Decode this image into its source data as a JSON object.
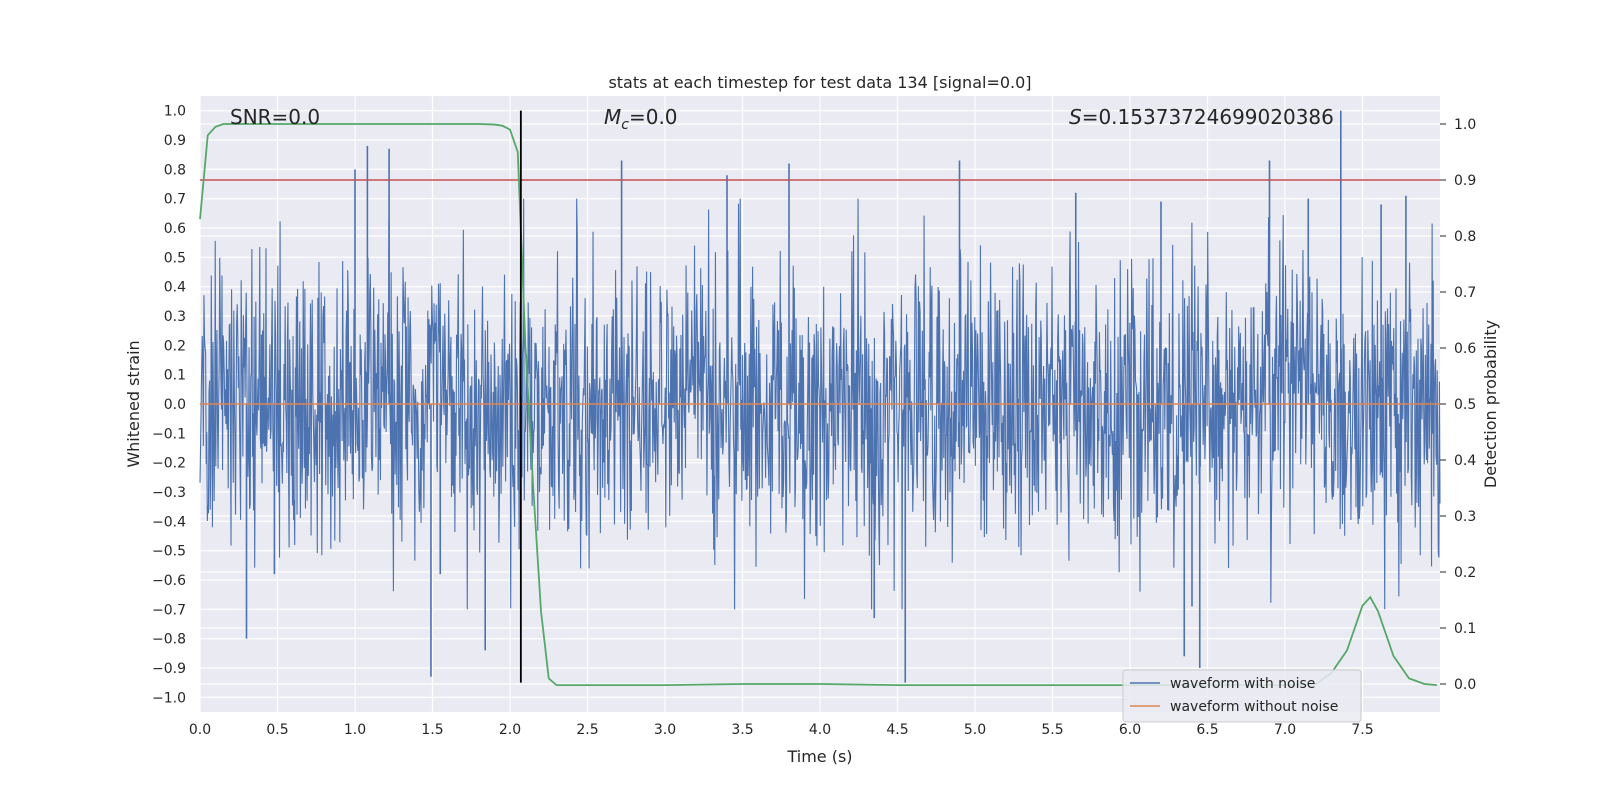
{
  "chart_data": {
    "type": "line",
    "title": "stats at each timestep for test data 134 [signal=0.0]",
    "xlabel": "Time (s)",
    "ylabel": "Whitened strain",
    "y2label": "Detection probability",
    "xlim": [
      0.0,
      8.0
    ],
    "ylim": [
      -1.05,
      1.05
    ],
    "y2lim": [
      -0.05,
      1.05
    ],
    "xticks": [
      0.0,
      0.5,
      1.0,
      1.5,
      2.0,
      2.5,
      3.0,
      3.5,
      4.0,
      4.5,
      5.0,
      5.5,
      6.0,
      6.5,
      7.0,
      7.5
    ],
    "yticks": [
      -1.0,
      -0.9,
      -0.8,
      -0.7,
      -0.6,
      -0.5,
      -0.4,
      -0.3,
      -0.2,
      -0.1,
      0.0,
      0.1,
      0.2,
      0.3,
      0.4,
      0.5,
      0.6,
      0.7,
      0.8,
      0.9,
      1.0
    ],
    "y2ticks": [
      0.0,
      0.1,
      0.2,
      0.3,
      0.4,
      0.5,
      0.6,
      0.7,
      0.8,
      0.9,
      1.0
    ],
    "grid": true,
    "legend_position": "lower-right",
    "annotations": {
      "snr": "SNR=0.0",
      "mc_symbol": "M",
      "mc_sub": "c",
      "mc_value": "=0.0",
      "s_symbol": "S",
      "s_value": "=0.15373724699020386"
    },
    "threshold": {
      "axis": "right",
      "value": 0.9,
      "color": "#c44e52"
    },
    "marker_line": {
      "x": 2.07,
      "y_range": [
        -0.95,
        1.0
      ],
      "color": "#000000"
    },
    "series": [
      {
        "name": "waveform with noise",
        "axis": "left",
        "color": "#4c72b0",
        "noise_band": {
          "x_range": [
            0.0,
            8.0
          ],
          "typical_amplitude": 0.45,
          "peak_max": 1.0,
          "peak_min": -0.95
        },
        "x": [
          0.3,
          0.48,
          1.0,
          1.08,
          1.22,
          1.49,
          1.55,
          1.84,
          2.72,
          3.4,
          3.8,
          4.35,
          4.55,
          4.9,
          5.65,
          6.2,
          6.35,
          6.4,
          6.45,
          6.9,
          7.15,
          7.36,
          7.62,
          7.78
        ],
        "y": [
          -0.8,
          -0.58,
          0.8,
          0.88,
          0.87,
          -0.93,
          -0.58,
          -0.84,
          0.83,
          0.78,
          0.82,
          -0.73,
          -0.95,
          0.83,
          0.72,
          0.69,
          -0.86,
          -0.69,
          -0.9,
          0.83,
          0.7,
          1.0,
          0.68,
          0.71
        ]
      },
      {
        "name": "waveform without noise",
        "axis": "left",
        "color": "#dd8452",
        "x": [
          0.0,
          8.0
        ],
        "y": [
          0.0,
          0.0
        ]
      },
      {
        "name": "detection probability",
        "axis": "right",
        "color": "#55a868",
        "x": [
          0.0,
          0.05,
          0.1,
          0.15,
          0.2,
          0.3,
          0.5,
          1.0,
          1.5,
          1.8,
          1.9,
          1.95,
          2.0,
          2.05,
          2.1,
          2.15,
          2.2,
          2.25,
          2.3,
          2.4,
          3.0,
          3.5,
          4.0,
          4.5,
          5.0,
          5.5,
          6.0,
          6.5,
          7.0,
          7.2,
          7.3,
          7.4,
          7.5,
          7.55,
          7.6,
          7.7,
          7.8,
          7.9,
          7.98
        ],
        "y": [
          0.83,
          0.98,
          0.995,
          1.0,
          1.0,
          1.0,
          1.0,
          1.0,
          1.0,
          1.0,
          0.999,
          0.997,
          0.99,
          0.95,
          0.6,
          0.35,
          0.13,
          0.01,
          -0.002,
          -0.002,
          -0.002,
          0.0,
          0.0,
          -0.002,
          -0.002,
          -0.002,
          -0.002,
          -0.002,
          -0.002,
          0.0,
          0.02,
          0.06,
          0.14,
          0.155,
          0.13,
          0.05,
          0.01,
          0.0,
          -0.002
        ]
      }
    ]
  }
}
